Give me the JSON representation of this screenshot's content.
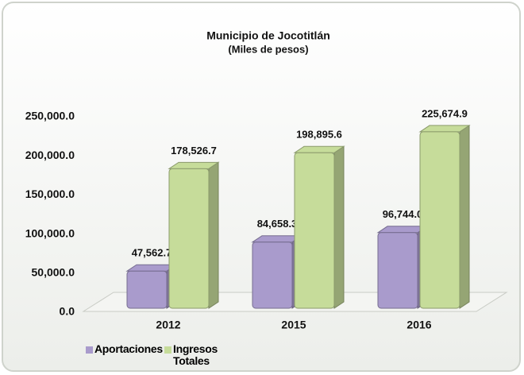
{
  "chart_data": {
    "type": "bar3d",
    "title": "Municipio de Jocotitlán",
    "subtitle": "(Miles de pesos)",
    "categories": [
      "2012",
      "2015",
      "2016"
    ],
    "series": [
      {
        "name": "Aportaciones",
        "color": "#a99bcc",
        "values": [
          47562.7,
          84658.3,
          96744.0
        ],
        "value_labels": [
          "47,562.7",
          "84,658.3",
          "96,744.0"
        ]
      },
      {
        "name": "Ingresos Totales",
        "color": "#c6dc9a",
        "values": [
          178526.7,
          198895.6,
          225674.9
        ],
        "value_labels": [
          "178,526.7",
          "198,895.6",
          "225,674.9"
        ]
      }
    ],
    "ylim": [
      0,
      250000
    ],
    "yticks": [
      {
        "value": 0,
        "label": "0.0"
      },
      {
        "value": 50000,
        "label": "50,000.0"
      },
      {
        "value": 100000,
        "label": "100,000.0"
      },
      {
        "value": 150000,
        "label": "150,000.0"
      },
      {
        "value": 200000,
        "label": "200,000.0"
      },
      {
        "value": 250000,
        "label": "250,000.0"
      }
    ]
  }
}
